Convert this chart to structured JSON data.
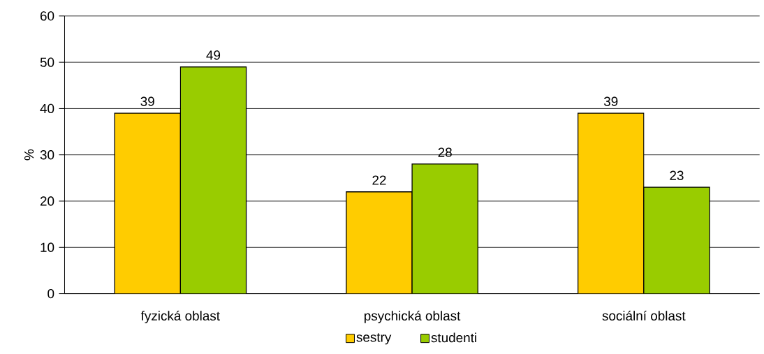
{
  "chart_data": {
    "type": "bar",
    "ylabel": "%",
    "categories": [
      "fyzická oblast",
      "psychická oblast",
      "sociální oblast"
    ],
    "series": [
      {
        "name": "sestry",
        "color": "#ffcc00",
        "values": [
          39,
          22,
          39
        ]
      },
      {
        "name": "studenti",
        "color": "#99cc00",
        "values": [
          49,
          28,
          23
        ]
      }
    ],
    "ylim": [
      0,
      60
    ],
    "yticks": [
      0,
      10,
      20,
      30,
      40,
      50,
      60
    ],
    "grid": "y",
    "legend": "bottom",
    "data_labels": true
  }
}
